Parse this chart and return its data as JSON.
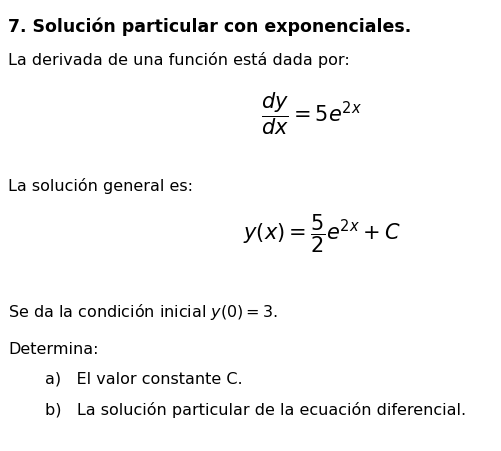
{
  "title": "7. Solución particular con exponenciales.",
  "line1": "La derivada de una función está dada por:",
  "line2": "La solución general es:",
  "line3_pre": "Se da la condición inicial ",
  "line3_math": "$y(0) = 3$.",
  "line4": "Determina:",
  "item_a": "a)   El valor constante C.",
  "item_b": "b)   La solución particular de la ecuación diferencial.",
  "bg_color": "#ffffff",
  "text_color": "#000000",
  "font_size_title": 12.5,
  "font_size_body": 11.5,
  "font_size_eq": 15
}
